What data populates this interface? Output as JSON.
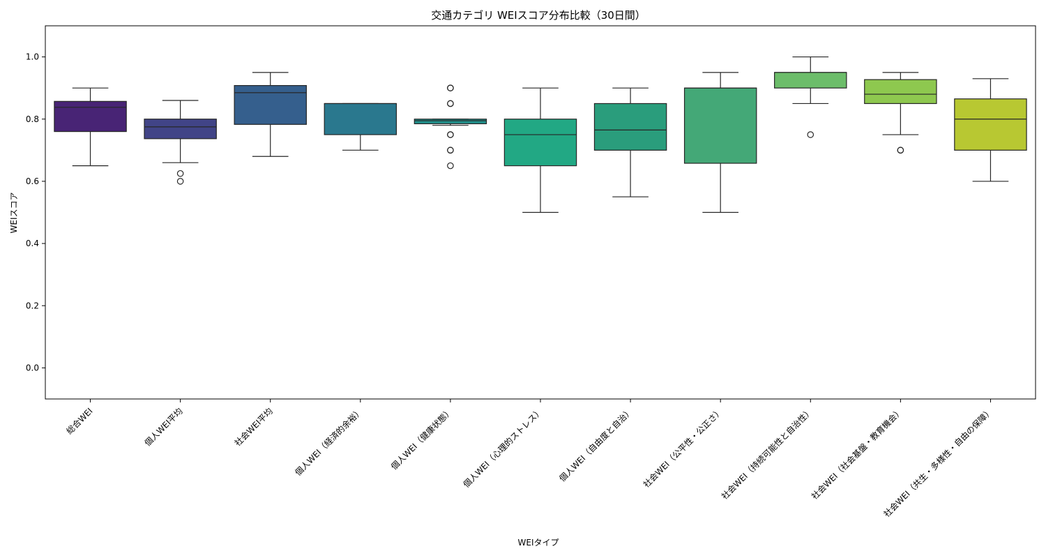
{
  "chart_data": {
    "type": "box",
    "title": "交通カテゴリ WEIスコア分布比較（30日間）",
    "xlabel": "WEIタイプ",
    "ylabel": "WEIスコア",
    "ylim": [
      -0.1,
      1.1
    ],
    "yticks": [
      0.0,
      0.2,
      0.4,
      0.6,
      0.8,
      1.0
    ],
    "ytick_labels": [
      "0.0",
      "0.2",
      "0.4",
      "0.6",
      "0.8",
      "1.0"
    ],
    "grid": false,
    "categories": [
      "総合WEI",
      "個人WEI平均",
      "社会WEI平均",
      "個人WEI（経済的余裕）",
      "個人WEI（健康状態）",
      "個人WEI（心理的ストレス）",
      "個人WEI（自由度と自治）",
      "社会WEI（公平性・公正さ）",
      "社会WEI（持続可能性と自治性）",
      "社会WEI（社会基盤・教育機会）",
      "社会WEI（共生・多様性・自由の保障）"
    ],
    "boxes": [
      {
        "whisker_low": 0.65,
        "q1": 0.76,
        "median": 0.838,
        "q3": 0.857,
        "whisker_high": 0.9,
        "outliers": [],
        "color": "#482475"
      },
      {
        "whisker_low": 0.66,
        "q1": 0.737,
        "median": 0.775,
        "q3": 0.8,
        "whisker_high": 0.86,
        "outliers": [
          0.6,
          0.625
        ],
        "color": "#414487"
      },
      {
        "whisker_low": 0.68,
        "q1": 0.783,
        "median": 0.885,
        "q3": 0.908,
        "whisker_high": 0.95,
        "outliers": [],
        "color": "#355f8d"
      },
      {
        "whisker_low": 0.7,
        "q1": 0.75,
        "median": 0.85,
        "q3": 0.85,
        "whisker_high": 0.85,
        "outliers": [],
        "color": "#2a788e"
      },
      {
        "whisker_low": 0.78,
        "q1": 0.785,
        "median": 0.795,
        "q3": 0.8,
        "whisker_high": 0.8,
        "outliers": [
          0.65,
          0.7,
          0.7,
          0.75,
          0.75,
          0.85,
          0.85,
          0.9,
          0.9
        ],
        "color": "#21918c"
      },
      {
        "whisker_low": 0.5,
        "q1": 0.65,
        "median": 0.75,
        "q3": 0.8,
        "whisker_high": 0.9,
        "outliers": [],
        "color": "#22a884"
      },
      {
        "whisker_low": 0.55,
        "q1": 0.7,
        "median": 0.765,
        "q3": 0.85,
        "whisker_high": 0.9,
        "outliers": [],
        "color": "#2a9d7c"
      },
      {
        "whisker_low": 0.5,
        "q1": 0.658,
        "median": 0.9,
        "q3": 0.9,
        "whisker_high": 0.95,
        "outliers": [],
        "color": "#44a877"
      },
      {
        "whisker_low": 0.85,
        "q1": 0.9,
        "median": 0.95,
        "q3": 0.95,
        "whisker_high": 1.0,
        "outliers": [
          0.75
        ],
        "color": "#6cbd6a"
      },
      {
        "whisker_low": 0.75,
        "q1": 0.85,
        "median": 0.88,
        "q3": 0.927,
        "whisker_high": 0.95,
        "outliers": [
          0.7,
          0.7
        ],
        "color": "#8ec84f"
      },
      {
        "whisker_low": 0.6,
        "q1": 0.7,
        "median": 0.8,
        "q3": 0.865,
        "whisker_high": 0.93,
        "outliers": [],
        "color": "#b8c832"
      }
    ],
    "colors": {
      "box_edge": "#262626",
      "axis": "#000000"
    }
  }
}
